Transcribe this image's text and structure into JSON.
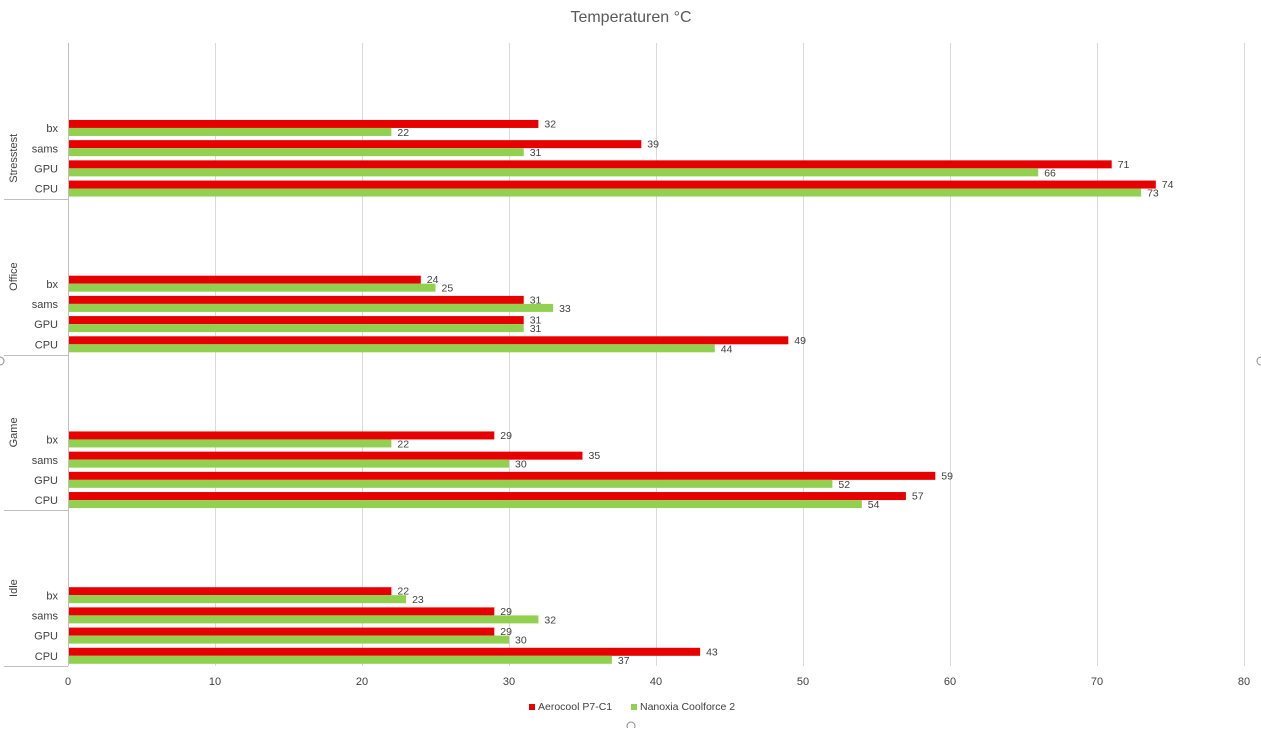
{
  "chart_data": {
    "type": "bar",
    "orientation": "horizontal",
    "title": "Temperaturen °C",
    "xlabel": "",
    "ylabel": "",
    "xlim": [
      0,
      80
    ],
    "x_ticks": [
      0,
      10,
      20,
      30,
      40,
      50,
      60,
      70,
      80
    ],
    "grid": true,
    "legend_position": "bottom",
    "colors": {
      "Aerocool P7-C1": "#e60000",
      "Nanoxia Coolforce 2": "#92d050"
    },
    "series": [
      {
        "name": "Aerocool P7-C1",
        "color": "#e60000"
      },
      {
        "name": "Nanoxia Coolforce 2",
        "color": "#92d050"
      }
    ],
    "groups": [
      {
        "name": "Stresstest",
        "categories": [
          "bx",
          "sams",
          "GPU",
          "CPU"
        ],
        "values": {
          "Aerocool P7-C1": [
            32,
            39,
            71,
            74
          ],
          "Nanoxia Coolforce 2": [
            22,
            31,
            66,
            73
          ]
        }
      },
      {
        "name": "Office",
        "categories": [
          "bx",
          "sams",
          "GPU",
          "CPU"
        ],
        "values": {
          "Aerocool P7-C1": [
            24,
            31,
            31,
            49
          ],
          "Nanoxia Coolforce 2": [
            25,
            33,
            31,
            44
          ]
        }
      },
      {
        "name": "Game",
        "categories": [
          "bx",
          "sams",
          "GPU",
          "CPU"
        ],
        "values": {
          "Aerocool P7-C1": [
            29,
            35,
            59,
            57
          ],
          "Nanoxia Coolforce 2": [
            22,
            30,
            52,
            54
          ]
        }
      },
      {
        "name": "Idle",
        "categories": [
          "bx",
          "sams",
          "GPU",
          "CPU"
        ],
        "values": {
          "Aerocool P7-C1": [
            22,
            29,
            29,
            43
          ],
          "Nanoxia Coolforce 2": [
            23,
            32,
            30,
            37
          ]
        }
      }
    ]
  }
}
